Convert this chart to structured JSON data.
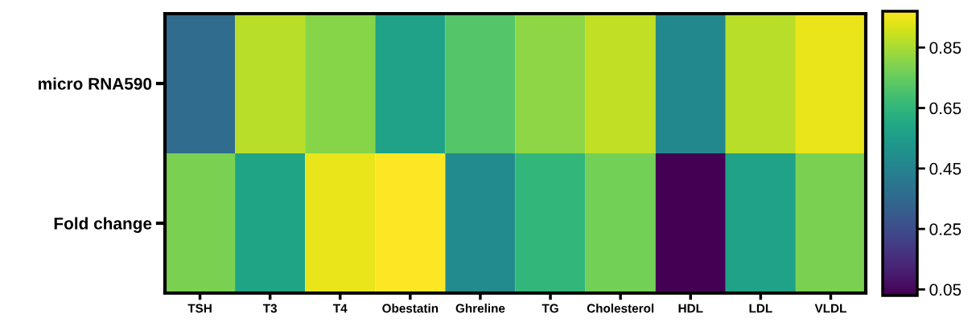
{
  "chart_data": {
    "type": "heatmap",
    "categories": [
      "TSH",
      "T3",
      "T4",
      "Obestatin",
      "Ghreline",
      "TG",
      "Cholesterol",
      "HDL",
      "LDL",
      "VLDL"
    ],
    "y_categories": [
      "micro RNA590",
      "Fold change"
    ],
    "cells": [
      [
        0.36,
        0.87,
        0.8,
        0.57,
        0.72,
        0.81,
        0.88,
        0.47,
        0.87,
        0.94
      ],
      [
        0.78,
        0.58,
        0.94,
        0.97,
        0.48,
        0.65,
        0.77,
        0.03,
        0.57,
        0.78
      ]
    ],
    "clim": [
      0.03,
      0.97
    ],
    "cticks": [
      0.05,
      0.25,
      0.45,
      0.65,
      0.85
    ]
  }
}
